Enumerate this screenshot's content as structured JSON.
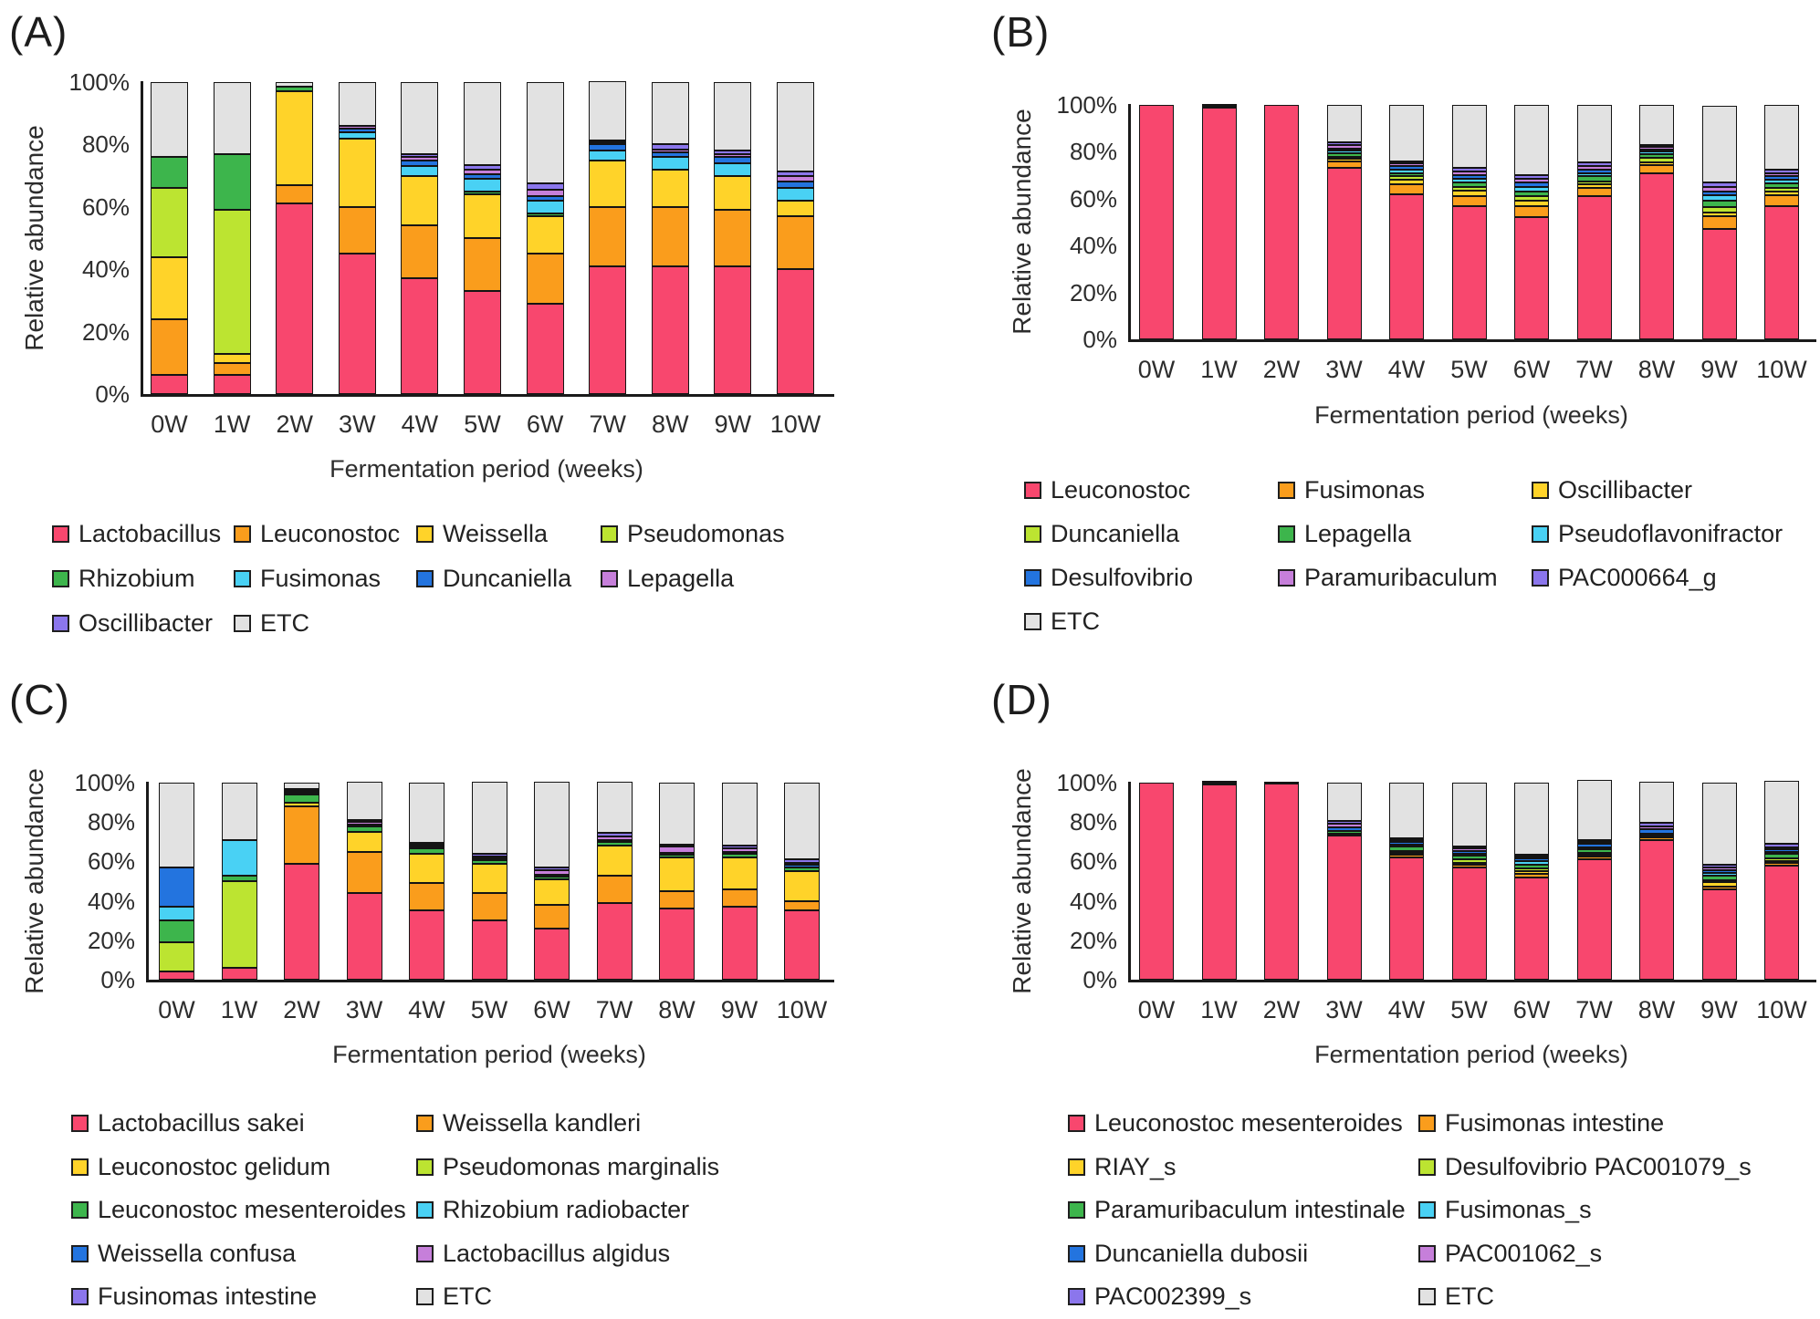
{
  "figure": {
    "y_axis_label": "Relative abundance",
    "x_axis_label": "Fermentation period (weeks)"
  },
  "chart_data": [
    {
      "panel": "(A)",
      "type": "bar",
      "stacked": true,
      "xlabel": "Fermentation period (weeks)",
      "ylabel": "Relative abundance",
      "ylim": [
        0,
        100
      ],
      "grid": false,
      "legend_position": "bottom",
      "y_tick_labels": [
        "100%",
        "80%",
        "60%",
        "40%",
        "20%",
        "0%"
      ],
      "categories": [
        "0W",
        "1W",
        "2W",
        "3W",
        "4W",
        "5W",
        "6W",
        "7W",
        "8W",
        "9W",
        "10W"
      ],
      "series": [
        {
          "name": "Lactobacillus",
          "color": "#F8476E",
          "values": [
            6,
            6,
            61,
            45,
            37,
            33,
            29,
            41,
            41,
            41,
            40
          ]
        },
        {
          "name": "Leuconostoc",
          "color": "#FA9D1C",
          "values": [
            18,
            4,
            6,
            15,
            17,
            17,
            16,
            19,
            19,
            18,
            17
          ]
        },
        {
          "name": "Weissella",
          "color": "#FFD329",
          "values": [
            20,
            3,
            30,
            22,
            16,
            14,
            12,
            15,
            12,
            11,
            5
          ]
        },
        {
          "name": "Pseudomonas",
          "color": "#BCE431",
          "values": [
            22,
            46,
            0,
            0,
            0,
            0,
            0,
            0,
            0,
            0,
            0
          ]
        },
        {
          "name": "Rhizobium",
          "color": "#3DB54C",
          "values": [
            10,
            18,
            1.5,
            0,
            0,
            1,
            1,
            0,
            0,
            0,
            0
          ]
        },
        {
          "name": "Fusimonas",
          "color": "#49D1F4",
          "values": [
            0,
            0,
            0,
            2,
            3,
            4,
            4,
            3,
            4,
            4,
            4
          ]
        },
        {
          "name": "Duncaniella",
          "color": "#2374DF",
          "values": [
            0,
            0,
            0,
            1,
            2,
            1.5,
            1.5,
            2,
            1.5,
            2,
            2
          ]
        },
        {
          "name": "Lepagella",
          "color": "#C67FDA",
          "values": [
            0,
            0,
            0,
            1,
            1,
            1.5,
            2,
            0.5,
            1,
            1,
            2
          ]
        },
        {
          "name": "Oscillibacter",
          "color": "#8B76EC",
          "values": [
            0,
            0,
            0,
            0,
            1,
            1.5,
            2,
            0.5,
            1.5,
            1,
            1.5
          ]
        },
        {
          "name": "ETC",
          "color": "#E2E2E2",
          "values": [
            24,
            23,
            1.5,
            14,
            23,
            26.5,
            32.5,
            19,
            20,
            22,
            28.5
          ]
        }
      ]
    },
    {
      "panel": "(B)",
      "type": "bar",
      "stacked": true,
      "xlabel": "Fermentation period (weeks)",
      "ylabel": "Relative abundance",
      "ylim": [
        0,
        100
      ],
      "grid": false,
      "legend_position": "bottom",
      "y_tick_labels": [
        "100%",
        "80%",
        "60%",
        "40%",
        "20%",
        "0%"
      ],
      "categories": [
        "0W",
        "1W",
        "2W",
        "3W",
        "4W",
        "5W",
        "6W",
        "7W",
        "8W",
        "9W",
        "10W"
      ],
      "series": [
        {
          "name": "Leuconostoc",
          "color": "#F8476E",
          "values": [
            100,
            99,
            100,
            73,
            62,
            57,
            52,
            61,
            71,
            47,
            57
          ]
        },
        {
          "name": "Fusimonas",
          "color": "#FA9D1C",
          "values": [
            0,
            0,
            0,
            3,
            4,
            4,
            5,
            3.5,
            3.5,
            5.5,
            4.5
          ]
        },
        {
          "name": "Oscillibacter",
          "color": "#FFD329",
          "values": [
            0,
            0,
            0,
            1,
            2,
            2.5,
            2,
            1.5,
            1,
            1.5,
            1.5
          ]
        },
        {
          "name": "Duncaniella",
          "color": "#BCE431",
          "values": [
            0,
            0,
            0,
            1,
            1.5,
            1.5,
            2,
            1.5,
            2,
            2.5,
            1.5
          ]
        },
        {
          "name": "Lepagella",
          "color": "#3DB54C",
          "values": [
            0,
            0,
            0,
            1.5,
            1.5,
            2,
            2,
            2,
            1.5,
            2.5,
            2
          ]
        },
        {
          "name": "Pseudoflavonifractor",
          "color": "#49D1F4",
          "values": [
            0,
            0,
            0,
            1,
            1.5,
            1.5,
            2,
            1.5,
            1,
            2.5,
            1.5
          ]
        },
        {
          "name": "Desulfovibrio",
          "color": "#2374DF",
          "values": [
            0,
            0,
            0,
            1,
            1.5,
            1.5,
            2,
            1.5,
            1,
            1.5,
            1.5
          ]
        },
        {
          "name": "Paramuribaculum",
          "color": "#C67FDA",
          "values": [
            0,
            0.5,
            0,
            1.5,
            1,
            1.5,
            1.5,
            1.5,
            1,
            2,
            1.5
          ]
        },
        {
          "name": "PAC000664_g",
          "color": "#8B76EC",
          "values": [
            0,
            0,
            0,
            1,
            1,
            1.5,
            1.5,
            1.5,
            1,
            2,
            1.5
          ]
        },
        {
          "name": "ETC",
          "color": "#E2E2E2",
          "values": [
            0,
            0.5,
            0,
            16,
            24,
            27,
            30,
            24.5,
            17,
            32.5,
            27.5
          ]
        }
      ]
    },
    {
      "panel": "(C)",
      "type": "bar",
      "stacked": true,
      "xlabel": "Fermentation period (weeks)",
      "ylabel": "Relative abundance",
      "ylim": [
        0,
        100
      ],
      "grid": false,
      "legend_position": "bottom",
      "y_tick_labels": [
        "100%",
        "80%",
        "60%",
        "40%",
        "20%",
        "0%"
      ],
      "categories": [
        "0W",
        "1W",
        "2W",
        "3W",
        "4W",
        "5W",
        "6W",
        "7W",
        "8W",
        "9W",
        "10W"
      ],
      "series": [
        {
          "name": "Lactobacillus sakei",
          "color": "#F8476E",
          "values": [
            4,
            6,
            59,
            44,
            35,
            30,
            26,
            39,
            36,
            37,
            35
          ]
        },
        {
          "name": "Weissella kandleri",
          "color": "#FA9D1C",
          "values": [
            0,
            0,
            29,
            21,
            14,
            14,
            12,
            14,
            9,
            9,
            5
          ]
        },
        {
          "name": "Leuconostoc gelidum",
          "color": "#FFD329",
          "values": [
            0,
            0,
            2,
            10,
            15,
            15,
            13,
            15,
            17,
            16,
            15
          ]
        },
        {
          "name": "Pseudomonas marginalis",
          "color": "#BCE431",
          "values": [
            15,
            44,
            0,
            0,
            0,
            0,
            0,
            0,
            0,
            0,
            0
          ]
        },
        {
          "name": "Leuconostoc mesenteroides",
          "color": "#3DB54C",
          "values": [
            11,
            3,
            4,
            3,
            2.5,
            1.5,
            1.5,
            2,
            1.5,
            2,
            2
          ]
        },
        {
          "name": "Rhizobium radiobacter",
          "color": "#49D1F4",
          "values": [
            7,
            18,
            0,
            0,
            0,
            0,
            0,
            0,
            0,
            0,
            0
          ]
        },
        {
          "name": "Weissella confusa",
          "color": "#2374DF",
          "values": [
            20,
            0,
            1,
            0.5,
            1,
            0.5,
            0.5,
            0.5,
            1,
            1,
            1.5
          ]
        },
        {
          "name": "Lactobacillus algidus",
          "color": "#C67FDA",
          "values": [
            0,
            0,
            1,
            1,
            1,
            1,
            2,
            2,
            3,
            1.5,
            1
          ]
        },
        {
          "name": "Fusinomas intestine",
          "color": "#8B76EC",
          "values": [
            0,
            0,
            1,
            1,
            1,
            1.5,
            1.5,
            1.5,
            1,
            1.5,
            1.5
          ]
        },
        {
          "name": "ETC",
          "color": "#E2E2E2",
          "values": [
            43,
            29,
            3,
            19.5,
            30.5,
            36.5,
            43.5,
            26,
            31.5,
            32,
            39
          ]
        }
      ]
    },
    {
      "panel": "(D)",
      "type": "bar",
      "stacked": true,
      "xlabel": "Fermentation period (weeks)",
      "ylabel": "Relative abundance",
      "ylim": [
        0,
        100
      ],
      "grid": false,
      "legend_position": "bottom",
      "y_tick_labels": [
        "100%",
        "80%",
        "60%",
        "40%",
        "20%",
        "0%"
      ],
      "categories": [
        "0W",
        "1W",
        "2W",
        "3W",
        "4W",
        "5W",
        "6W",
        "7W",
        "8W",
        "9W",
        "10W"
      ],
      "series": [
        {
          "name": "Leuconostoc mesenteroides",
          "color": "#F8476E",
          "values": [
            100,
            99,
            99.5,
            73,
            62,
            57,
            52,
            61,
            71,
            46,
            58
          ]
        },
        {
          "name": "Fusimonas intestine",
          "color": "#FA9D1C",
          "values": [
            0,
            0,
            0,
            1,
            1.5,
            1.5,
            1.5,
            1.5,
            1,
            1,
            1.5
          ]
        },
        {
          "name": "RIAY_s",
          "color": "#FFD329",
          "values": [
            0,
            0,
            0,
            0,
            1,
            1,
            1.5,
            0.5,
            0.5,
            2.5,
            0.5
          ]
        },
        {
          "name": "Desulfovibrio PAC001079_s",
          "color": "#BCE431",
          "values": [
            0,
            0,
            0,
            0,
            1,
            1.5,
            1.5,
            0.5,
            0,
            1,
            1
          ]
        },
        {
          "name": "Paramuribaculum intestinale",
          "color": "#3DB54C",
          "values": [
            0,
            0,
            0,
            1.5,
            2,
            2,
            2,
            2,
            1,
            2.5,
            2.5
          ]
        },
        {
          "name": "Fusimonas_s",
          "color": "#49D1F4",
          "values": [
            0,
            0,
            0,
            0,
            1,
            1,
            1.5,
            0.5,
            0,
            1,
            0.5
          ]
        },
        {
          "name": "Duncaniella dubosii",
          "color": "#2374DF",
          "values": [
            0,
            0.5,
            0,
            2,
            1.5,
            1.5,
            1.5,
            1.5,
            2.5,
            1.5,
            1.5
          ]
        },
        {
          "name": "PAC001062_s",
          "color": "#C67FDA",
          "values": [
            0,
            0,
            0,
            1.5,
            1,
            1,
            1,
            1,
            1.5,
            1.5,
            1
          ]
        },
        {
          "name": "PAC002399_s",
          "color": "#8B76EC",
          "values": [
            0,
            0,
            0,
            1.5,
            1,
            1,
            1,
            1,
            1.5,
            1.5,
            1.5
          ]
        },
        {
          "name": "ETC",
          "color": "#E2E2E2",
          "values": [
            0,
            0.5,
            0.5,
            19.5,
            28,
            32.5,
            36.5,
            30.5,
            21,
            41.5,
            32
          ]
        }
      ]
    }
  ]
}
